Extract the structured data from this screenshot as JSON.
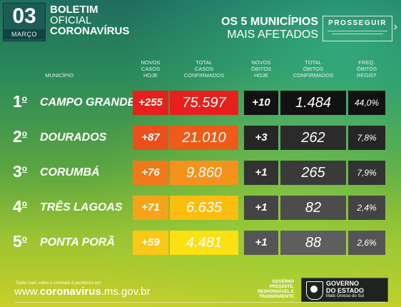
{
  "header": {
    "day": "03",
    "month": "MARÇO",
    "title_line1": "BOLETIM",
    "title_line2": "OFICIAL",
    "title_line3": "CORONAVÍRUS",
    "right_line1": "OS 5 MUNICÍPIOS",
    "right_line2": "MAIS AFETADOS",
    "brand": "PROSSEGUIR"
  },
  "columns": {
    "municipio": "MUNICÍPIO",
    "novos_casos": [
      "NOVOS",
      "CASOS",
      "HOJE"
    ],
    "total_casos": [
      "TOTAL",
      "CASOS",
      "CONFIRMADOS"
    ],
    "novos_obitos": [
      "NOVOS",
      "ÓBITOS",
      "HOJE"
    ],
    "total_obitos": [
      "TOTAL",
      "ÓBITOS",
      "CONFIRMADOS"
    ],
    "freq": [
      "FREQ.",
      "ÓBITOS",
      "REGIST"
    ]
  },
  "rows": [
    {
      "rank": "1",
      "city": "CAMPO GRANDE",
      "new_cases": "+255",
      "total_cases": "75.597",
      "new_deaths": "+10",
      "total_deaths": "1.484",
      "freq": "44,0%"
    },
    {
      "rank": "2",
      "city": "DOURADOS",
      "new_cases": "+87",
      "total_cases": "21.010",
      "new_deaths": "+3",
      "total_deaths": "262",
      "freq": "7,8%"
    },
    {
      "rank": "3",
      "city": "CORUMBÁ",
      "new_cases": "+76",
      "total_cases": "9.860",
      "new_deaths": "+1",
      "total_deaths": "265",
      "freq": "7,9%"
    },
    {
      "rank": "4",
      "city": "TRÊS LAGOAS",
      "new_cases": "+71",
      "total_cases": "6.635",
      "new_deaths": "+1",
      "total_deaths": "82",
      "freq": "2,4%"
    },
    {
      "rank": "5",
      "city": "PONTA PORÃ",
      "new_cases": "+59",
      "total_cases": "4.481",
      "new_deaths": "+1",
      "total_deaths": "88",
      "freq": "2,6%"
    }
  ],
  "row_colors": [
    {
      "new": "#e8201c",
      "total": "#e8201c",
      "dnew": "#121212",
      "dtot": "#121212",
      "freq": "#121212"
    },
    {
      "new": "#ec4f1a",
      "total": "#ee5a18",
      "dnew": "#262626",
      "dtot": "#2b2b2b",
      "freq": "#262626"
    },
    {
      "new": "#f0791a",
      "total": "#f5921c",
      "dnew": "#333333",
      "dtot": "#3a3a3a",
      "freq": "#333333"
    },
    {
      "new": "#f5a418",
      "total": "#fbbd10",
      "dnew": "#444444",
      "dtot": "#4c4c4c",
      "freq": "#444444"
    },
    {
      "new": "#f8c814",
      "total": "#fbe012",
      "dnew": "#555555",
      "dtot": "#5e5e5e",
      "freq": "#555555"
    }
  ],
  "footer": {
    "small_text": "Saiba mais sobre o combate à pandemia em",
    "url_prefix": "www.",
    "url_bold": "coronavirus",
    "url_suffix": ".ms.gov.br",
    "gov_slogan": [
      "GOVERNO",
      "PRESENTE,",
      "RESPONSÁVEL",
      "E",
      "TRANSPARENTE"
    ],
    "gov_name": [
      "GOVERNO",
      "DO ESTADO"
    ],
    "gov_state": "Mato Grosso do Sul"
  }
}
